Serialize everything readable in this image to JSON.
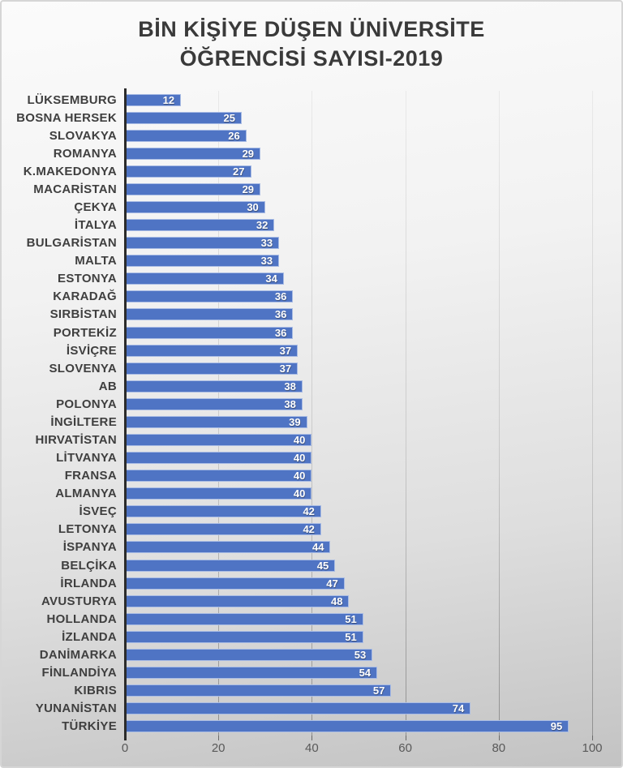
{
  "chart_data": {
    "type": "bar",
    "orientation": "horizontal",
    "title": "BİN KİŞİYE DÜŞEN ÜNİVERSİTE ÖĞRENCİSİ SAYISI-2019",
    "title_lines": [
      "BİN KİŞİYE DÜŞEN ÜNİVERSİTE",
      "ÖĞRENCİSİ SAYISI-2019"
    ],
    "categories": [
      "LÜKSEMBURG",
      "BOSNA HERSEK",
      "SLOVAKYA",
      "ROMANYA",
      "K.MAKEDONYA",
      "MACARİSTAN",
      "ÇEKYA",
      "İTALYA",
      "BULGARİSTAN",
      "MALTA",
      "ESTONYA",
      "KARADAĞ",
      "SIRBİSTAN",
      "PORTEKİZ",
      "İSVİÇRE",
      "SLOVENYA",
      "AB",
      "POLONYA",
      "İNGİLTERE",
      "HIRVATİSTAN",
      "LİTVANYA",
      "FRANSA",
      "ALMANYA",
      "İSVEÇ",
      "LETONYA",
      "İSPANYA",
      "BELÇİKA",
      "İRLANDA",
      "AVUSTURYA",
      "HOLLANDA",
      "İZLANDA",
      "DANİMARKA",
      "FİNLANDİYA",
      "KIBRIS",
      "YUNANİSTAN",
      "TÜRKİYE"
    ],
    "values": [
      12,
      25,
      26,
      29,
      27,
      29,
      30,
      32,
      33,
      33,
      34,
      36,
      36,
      36,
      37,
      37,
      38,
      38,
      39,
      40,
      40,
      40,
      40,
      42,
      42,
      44,
      45,
      47,
      48,
      51,
      51,
      53,
      54,
      57,
      74,
      95
    ],
    "xlabel": "",
    "ylabel": "",
    "xlim": [
      0,
      100
    ],
    "x_ticks": [
      0,
      20,
      40,
      60,
      80,
      100
    ],
    "grid": true,
    "legend": false,
    "value_labels": "inside-end",
    "colors": {
      "bar_fill": "#4F74C4",
      "bar_border": "#A9BCE4",
      "value_label": "#FFFFFF",
      "axis_line": "#2B2B2B",
      "tick_label": "#595959",
      "category_label": "#3F3F3F",
      "title": "#3A3A3A",
      "background_top": "#FBFBFB",
      "background_bottom": "#C3C3C3",
      "gridline": "#AFAFAF"
    }
  }
}
